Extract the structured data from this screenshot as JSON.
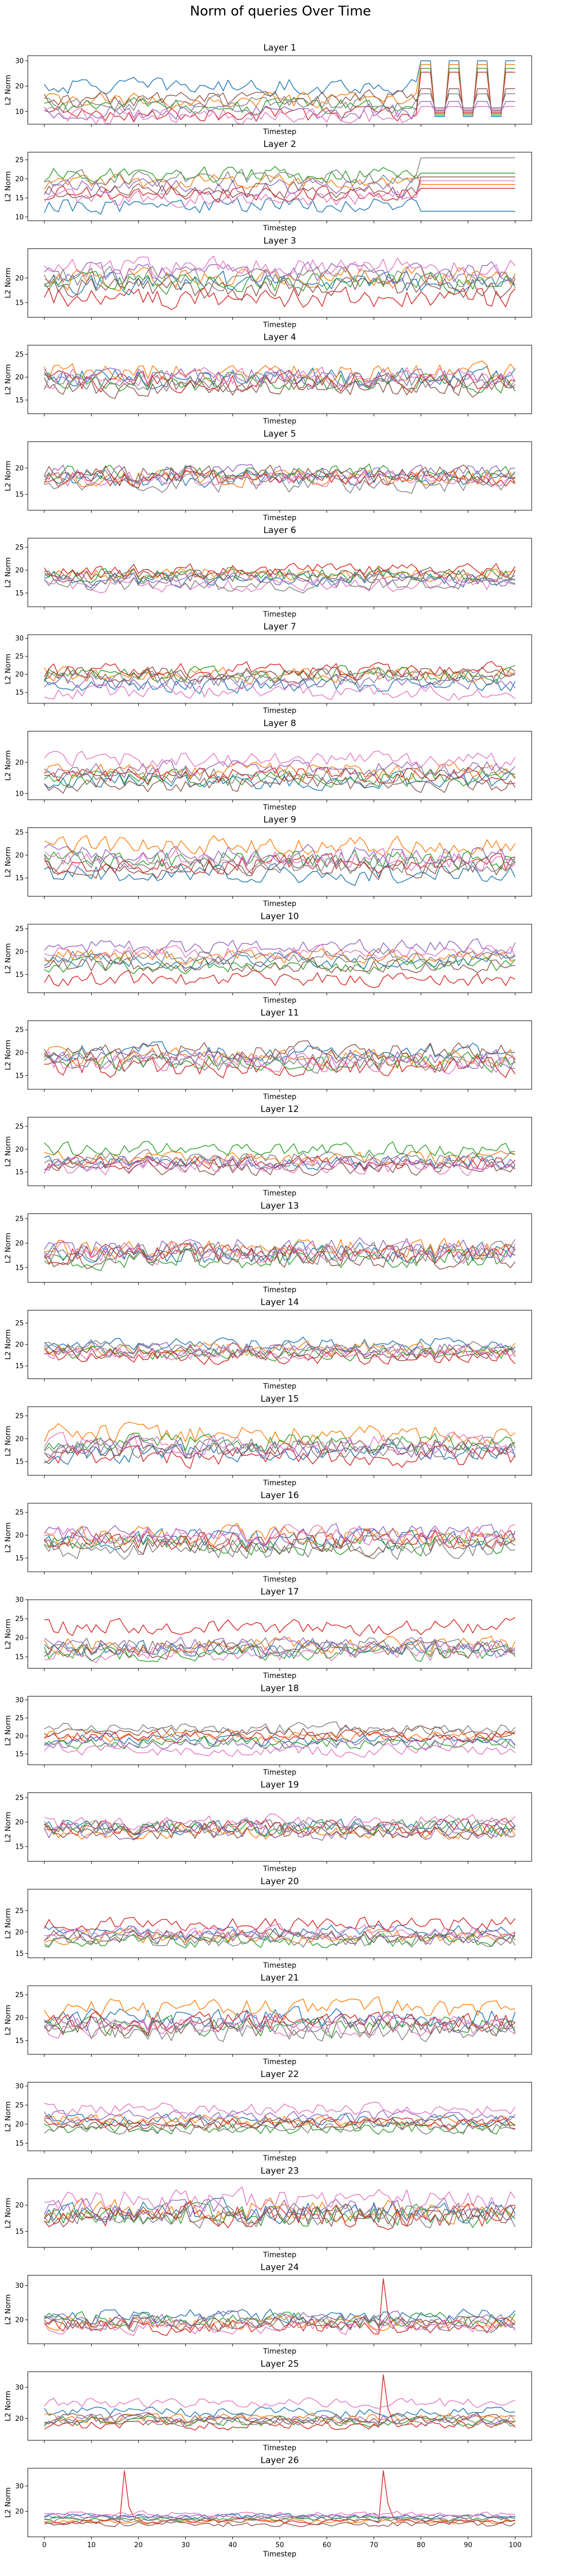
{
  "figure": {
    "suptitle": "Norm of queries Over Time",
    "xlabel": "Timestep",
    "ylabel": "L2 Norm",
    "colors": [
      "#1f77b4",
      "#ff7f0e",
      "#2ca02c",
      "#d62728",
      "#9467bd",
      "#8c564b",
      "#e377c2",
      "#7f7f7f"
    ],
    "x_ticks": [
      0,
      10,
      20,
      30,
      40,
      50,
      60,
      70,
      80,
      90,
      100
    ]
  },
  "chart_data": {
    "type": "line",
    "xlim": [
      -3.5,
      103.5
    ],
    "x_range": [
      0,
      100
    ],
    "series_per_panel": 8,
    "note": "Each panel shows 8 noisy series (query heads) over 101 timesteps; per-series approximate mean levels listed",
    "panels": [
      {
        "title": "Layer 1",
        "yticks": [
          10,
          20,
          30
        ],
        "ylim": [
          5,
          32
        ],
        "levels": [
          20,
          14,
          12,
          9,
          10,
          15,
          8,
          13
        ],
        "noise": 3,
        "pattern": "spikes80"
      },
      {
        "title": "Layer 2",
        "yticks": [
          10,
          15,
          20,
          25
        ],
        "ylim": [
          9,
          27
        ],
        "levels": [
          13,
          19,
          21,
          16,
          18,
          17,
          15,
          20
        ],
        "noise": 2,
        "pattern": "flat80"
      },
      {
        "title": "Layer 3",
        "yticks": [
          15,
          20
        ],
        "ylim": [
          12,
          26
        ],
        "levels": [
          19,
          20,
          19,
          16,
          21,
          18,
          22,
          20
        ],
        "noise": 2,
        "pattern": "none"
      },
      {
        "title": "Layer 4",
        "yticks": [
          15,
          20,
          25
        ],
        "ylim": [
          12,
          27
        ],
        "levels": [
          20,
          21,
          19,
          19,
          20,
          18,
          20,
          19
        ],
        "noise": 2,
        "pattern": "none"
      },
      {
        "title": "Layer 5",
        "yticks": [
          15,
          20
        ],
        "ylim": [
          12,
          25
        ],
        "levels": [
          18,
          18,
          19,
          18,
          19,
          19,
          18,
          17
        ],
        "noise": 1.5,
        "pattern": "none"
      },
      {
        "title": "Layer 6",
        "yticks": [
          15,
          20,
          25
        ],
        "ylim": [
          12,
          27
        ],
        "levels": [
          18,
          19,
          19,
          20,
          18,
          19,
          17,
          17
        ],
        "noise": 1.5,
        "pattern": "none"
      },
      {
        "title": "Layer 7",
        "yticks": [
          15,
          20,
          25,
          30
        ],
        "ylim": [
          12,
          31
        ],
        "levels": [
          17,
          20,
          20,
          21,
          18,
          20,
          15,
          19
        ],
        "noise": 2,
        "pattern": "none"
      },
      {
        "title": "Layer 8",
        "yticks": [
          10,
          20
        ],
        "ylim": [
          8,
          30
        ],
        "levels": [
          14,
          17,
          15,
          16,
          18,
          13,
          21,
          16
        ],
        "noise": 2.5,
        "pattern": "none"
      },
      {
        "title": "Layer 9",
        "yticks": [
          15,
          20,
          25
        ],
        "ylim": [
          11,
          26
        ],
        "levels": [
          16,
          22,
          19,
          18,
          20,
          17,
          19,
          18
        ],
        "noise": 2,
        "pattern": "none"
      },
      {
        "title": "Layer 10",
        "yticks": [
          15,
          20,
          25
        ],
        "ylim": [
          11,
          26
        ],
        "levels": [
          18,
          19,
          17,
          14,
          21,
          17,
          20,
          19
        ],
        "noise": 1.5,
        "pattern": "none"
      },
      {
        "title": "Layer 11",
        "yticks": [
          15,
          20,
          25
        ],
        "ylim": [
          12,
          27
        ],
        "levels": [
          20,
          19,
          18,
          17,
          19,
          20,
          18,
          18
        ],
        "noise": 2,
        "pattern": "none"
      },
      {
        "title": "Layer 12",
        "yticks": [
          15,
          20,
          25
        ],
        "ylim": [
          12,
          27
        ],
        "levels": [
          17,
          18,
          20,
          17,
          17,
          16,
          16,
          18
        ],
        "noise": 1.5,
        "pattern": "none"
      },
      {
        "title": "Layer 13",
        "yticks": [
          15,
          20,
          25
        ],
        "ylim": [
          12,
          26
        ],
        "levels": [
          18,
          19,
          17,
          18,
          19,
          17,
          18,
          18
        ],
        "noise": 2,
        "pattern": "none"
      },
      {
        "title": "Layer 14",
        "yticks": [
          15,
          20,
          25
        ],
        "ylim": [
          12,
          28
        ],
        "levels": [
          20,
          19,
          18,
          17,
          19,
          18,
          18,
          19
        ],
        "noise": 1.5,
        "pattern": "none"
      },
      {
        "title": "Layer 15",
        "yticks": [
          15,
          20,
          25
        ],
        "ylim": [
          12,
          27
        ],
        "levels": [
          17,
          21,
          19,
          16,
          18,
          18,
          19,
          18
        ],
        "noise": 2,
        "pattern": "none"
      },
      {
        "title": "Layer 16",
        "yticks": [
          15,
          20,
          25
        ],
        "ylim": [
          12,
          27
        ],
        "levels": [
          19,
          20,
          18,
          19,
          20,
          18,
          20,
          17
        ],
        "noise": 2,
        "pattern": "none"
      },
      {
        "title": "Layer 17",
        "yticks": [
          15,
          20,
          25,
          30
        ],
        "ylim": [
          12,
          30
        ],
        "levels": [
          17,
          18,
          16,
          23,
          18,
          17,
          16,
          18
        ],
        "noise": 2,
        "pattern": "none"
      },
      {
        "title": "Layer 18",
        "yticks": [
          15,
          20,
          25,
          30
        ],
        "ylim": [
          12,
          31
        ],
        "levels": [
          19,
          20,
          18,
          20,
          18,
          21,
          16,
          22
        ],
        "noise": 1.5,
        "pattern": "none"
      },
      {
        "title": "Layer 19",
        "yticks": [
          15,
          20,
          25
        ],
        "ylim": [
          12,
          26
        ],
        "levels": [
          19,
          18,
          19,
          19,
          18,
          18,
          20,
          19
        ],
        "noise": 1.5,
        "pattern": "none"
      },
      {
        "title": "Layer 20",
        "yticks": [
          15,
          20,
          25
        ],
        "ylim": [
          14,
          30
        ],
        "levels": [
          20,
          19,
          18,
          22,
          19,
          19,
          20,
          18
        ],
        "noise": 1.5,
        "pattern": "none"
      },
      {
        "title": "Layer 21",
        "yticks": [
          15,
          20,
          25
        ],
        "ylim": [
          12,
          27
        ],
        "levels": [
          20,
          22,
          18,
          19,
          19,
          18,
          18,
          17
        ],
        "noise": 2,
        "pattern": "none"
      },
      {
        "title": "Layer 22",
        "yticks": [
          15,
          20,
          25,
          30
        ],
        "ylim": [
          13,
          31
        ],
        "levels": [
          21,
          21,
          19,
          20,
          22,
          20,
          24,
          19
        ],
        "noise": 1.5,
        "pattern": "none"
      },
      {
        "title": "Layer 23",
        "yticks": [
          15,
          20
        ],
        "ylim": [
          12,
          25
        ],
        "levels": [
          19,
          19,
          18,
          18,
          19,
          18,
          21,
          18
        ],
        "noise": 2,
        "pattern": "none"
      },
      {
        "title": "Layer 24",
        "yticks": [
          20,
          30
        ],
        "ylim": [
          13,
          33
        ],
        "levels": [
          21,
          19,
          20,
          18,
          20,
          19,
          18,
          19
        ],
        "noise": 2,
        "pattern": "spike72"
      },
      {
        "title": "Layer 25",
        "yticks": [
          20,
          30
        ],
        "ylim": [
          13,
          35
        ],
        "levels": [
          22,
          20,
          19,
          18,
          20,
          20,
          25,
          19
        ],
        "noise": 1.5,
        "pattern": "spike72"
      },
      {
        "title": "Layer 26",
        "yticks": [
          20,
          30
        ],
        "ylim": [
          10,
          37
        ],
        "levels": [
          18,
          16,
          17,
          16,
          18,
          15,
          19,
          17
        ],
        "noise": 1,
        "pattern": "spikes17_72"
      }
    ]
  }
}
